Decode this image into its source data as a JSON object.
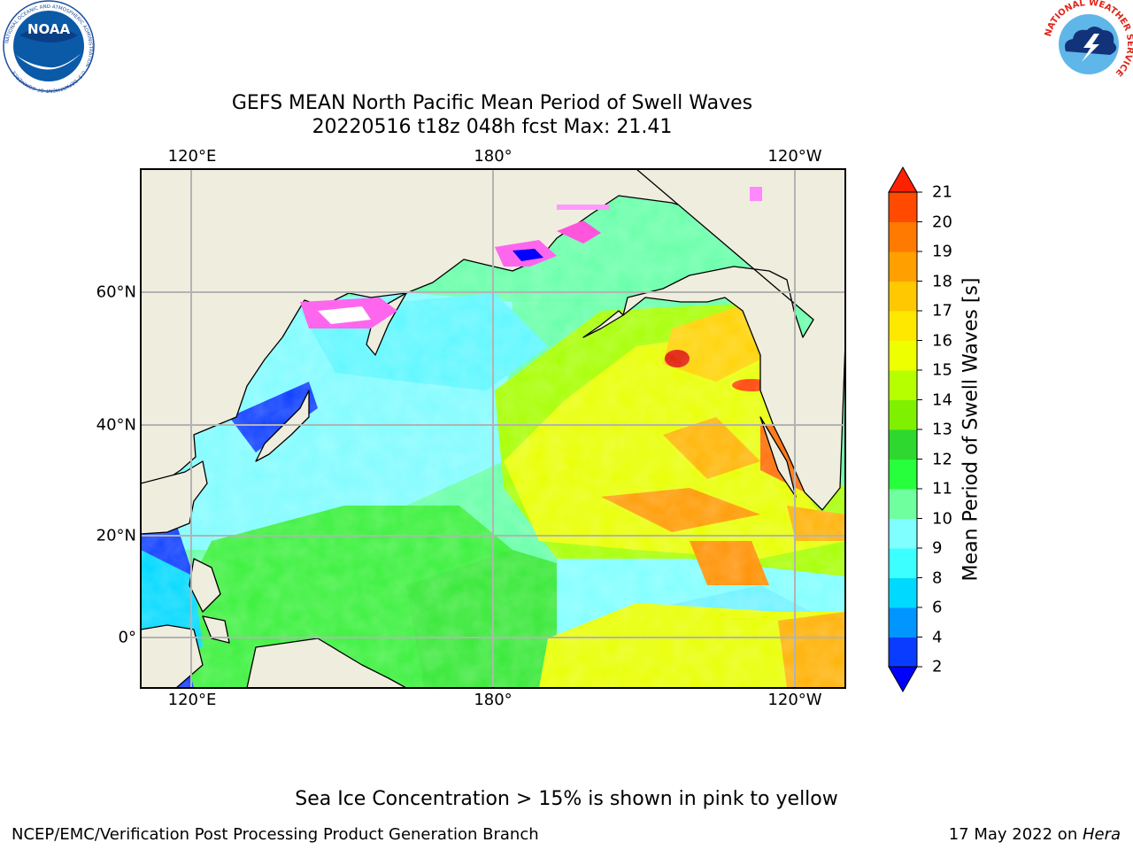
{
  "header": {
    "title_line1": "GEFS MEAN North Pacific Mean Period of Swell Waves",
    "title_line2": "20220516 t18z 048h fcst   Max: 21.41",
    "noaa_logo_text": "NOAA",
    "noaa_ring_text": "NATIONAL OCEANIC AND ATMOSPHERIC ADMINISTRATION · U.S. DEPARTMENT OF COMMERCE",
    "nws_ring_text": "NATIONAL WEATHER SERVICE"
  },
  "map": {
    "lon_ticks": [
      "120°E",
      "180°",
      "120°W"
    ],
    "lat_ticks": [
      "60°N",
      "40°N",
      "20°N",
      "0°"
    ],
    "colors": {
      "land": "#efedde",
      "grid": "#b3b3b3"
    }
  },
  "colorbar": {
    "label": "Mean Period of Swell Waves [s]",
    "ticks": [
      "2",
      "4",
      "6",
      "8",
      "9",
      "10",
      "11",
      "12",
      "13",
      "14",
      "15",
      "16",
      "17",
      "18",
      "19",
      "20",
      "21"
    ],
    "colors": [
      "#0a3cff",
      "#0095ff",
      "#00d9ff",
      "#3cffff",
      "#7fffff",
      "#6fff9f",
      "#27ff3c",
      "#2ed82e",
      "#7ff000",
      "#b5ff00",
      "#eeff00",
      "#ffe800",
      "#ffc800",
      "#ffa000",
      "#ff7a00",
      "#ff4a00",
      "#ff1200"
    ],
    "under_color": "#0000ff",
    "over_color": "#ff2200"
  },
  "annotation": "Sea Ice Concentration > 15% is shown in pink to yellow",
  "footer": {
    "left": "NCEP/EMC/Verification Post Processing Product Generation Branch",
    "right_date": "17 May 2022 on ",
    "right_host": "Hera"
  }
}
